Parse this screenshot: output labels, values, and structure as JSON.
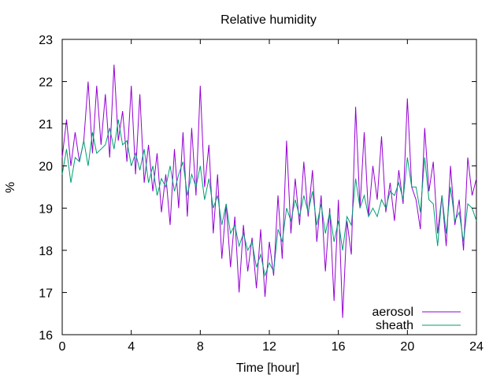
{
  "chart_data": {
    "type": "line",
    "title": "Relative humidity",
    "xlabel": "Time [hour]",
    "ylabel": "%",
    "xlim": [
      0,
      24
    ],
    "ylim": [
      16,
      23
    ],
    "xticks": [
      "0",
      "4",
      "8",
      "12",
      "16",
      "20",
      "24"
    ],
    "yticks": [
      "16",
      "17",
      "18",
      "19",
      "20",
      "21",
      "22",
      "23"
    ],
    "grid": false,
    "legend_position": "bottom-right",
    "series": [
      {
        "name": "aerosol",
        "color": "#9400d3",
        "x": [
          0,
          0.25,
          0.5,
          0.75,
          1,
          1.25,
          1.5,
          1.75,
          2,
          2.25,
          2.5,
          2.75,
          3,
          3.25,
          3.5,
          3.75,
          4,
          4.25,
          4.5,
          4.75,
          5,
          5.25,
          5.5,
          5.75,
          6,
          6.25,
          6.5,
          6.75,
          7,
          7.25,
          7.5,
          7.75,
          8,
          8.25,
          8.5,
          8.75,
          9,
          9.25,
          9.5,
          9.75,
          10,
          10.25,
          10.5,
          10.75,
          11,
          11.25,
          11.5,
          11.75,
          12,
          12.25,
          12.5,
          12.75,
          13,
          13.25,
          13.5,
          13.75,
          14,
          14.25,
          14.5,
          14.75,
          15,
          15.25,
          15.5,
          15.75,
          16,
          16.25,
          16.5,
          16.75,
          17,
          17.25,
          17.5,
          17.75,
          18,
          18.25,
          18.5,
          18.75,
          19,
          19.25,
          19.5,
          19.75,
          20,
          20.25,
          20.5,
          20.75,
          21,
          21.25,
          21.5,
          21.75,
          22,
          22.25,
          22.5,
          22.75,
          23,
          23.25,
          23.5,
          23.75,
          24
        ],
        "values": [
          20.2,
          21.1,
          20.0,
          20.8,
          20.1,
          20.6,
          22.0,
          20.3,
          21.9,
          20.5,
          21.7,
          20.2,
          22.4,
          20.6,
          21.3,
          20.1,
          21.9,
          19.8,
          21.7,
          19.6,
          20.5,
          19.4,
          20.3,
          18.9,
          19.8,
          18.6,
          20.4,
          19.0,
          20.8,
          18.8,
          20.9,
          19.3,
          21.9,
          19.5,
          20.5,
          18.4,
          19.8,
          17.8,
          19.1,
          17.6,
          18.8,
          17.0,
          18.6,
          17.5,
          18.3,
          17.1,
          18.5,
          16.9,
          18.2,
          17.4,
          19.3,
          17.8,
          20.6,
          18.4,
          19.7,
          18.6,
          20.1,
          18.8,
          19.9,
          18.2,
          19.3,
          17.5,
          19.0,
          16.8,
          19.2,
          16.4,
          18.7,
          17.9,
          21.4,
          19.0,
          20.8,
          18.8,
          20.0,
          19.2,
          20.7,
          18.9,
          19.6,
          18.7,
          19.9,
          19.1,
          21.6,
          19.5,
          19.2,
          18.5,
          20.9,
          19.4,
          20.1,
          18.4,
          19.3,
          18.1,
          20.0,
          18.6,
          19.2,
          18.0,
          20.2,
          19.3,
          19.7
        ]
      },
      {
        "name": "sheath",
        "color": "#009e73",
        "x": [
          0,
          0.25,
          0.5,
          0.75,
          1,
          1.25,
          1.5,
          1.75,
          2,
          2.25,
          2.5,
          2.75,
          3,
          3.25,
          3.5,
          3.75,
          4,
          4.25,
          4.5,
          4.75,
          5,
          5.25,
          5.5,
          5.75,
          6,
          6.25,
          6.5,
          6.75,
          7,
          7.25,
          7.5,
          7.75,
          8,
          8.25,
          8.5,
          8.75,
          9,
          9.25,
          9.5,
          9.75,
          10,
          10.25,
          10.5,
          10.75,
          11,
          11.25,
          11.5,
          11.75,
          12,
          12.25,
          12.5,
          12.75,
          13,
          13.25,
          13.5,
          13.75,
          14,
          14.25,
          14.5,
          14.75,
          15,
          15.25,
          15.5,
          15.75,
          16,
          16.25,
          16.5,
          16.75,
          17,
          17.25,
          17.5,
          17.75,
          18,
          18.25,
          18.5,
          18.75,
          19,
          19.25,
          19.5,
          19.75,
          20,
          20.25,
          20.5,
          20.75,
          21,
          21.25,
          21.5,
          21.75,
          22,
          22.25,
          22.5,
          22.75,
          23,
          23.25,
          23.5,
          23.75,
          24
        ],
        "values": [
          19.8,
          20.4,
          19.6,
          20.2,
          20.1,
          20.6,
          20.0,
          20.8,
          20.3,
          20.4,
          20.5,
          20.9,
          20.4,
          21.1,
          20.5,
          20.6,
          20.0,
          20.3,
          19.9,
          20.4,
          19.6,
          20.0,
          19.3,
          19.7,
          19.5,
          20.0,
          19.4,
          19.8,
          20.1,
          19.3,
          19.8,
          19.5,
          20.0,
          19.2,
          19.7,
          19.0,
          19.3,
          18.6,
          19.1,
          18.4,
          18.6,
          18.1,
          18.4,
          18.0,
          18.2,
          17.6,
          17.9,
          17.4,
          17.7,
          17.5,
          18.5,
          18.2,
          19.0,
          18.7,
          19.2,
          18.8,
          19.3,
          18.9,
          19.4,
          18.6,
          19.1,
          18.4,
          18.9,
          18.2,
          18.7,
          18.0,
          18.8,
          18.6,
          19.7,
          19.0,
          19.3,
          18.8,
          19.0,
          18.8,
          19.2,
          19.0,
          19.4,
          19.3,
          19.6,
          19.2,
          20.2,
          19.5,
          19.5,
          18.9,
          20.2,
          19.2,
          19.1,
          18.1,
          19.3,
          18.4,
          19.5,
          18.7,
          18.9,
          18.2,
          19.1,
          19.0,
          18.7
        ]
      }
    ]
  }
}
